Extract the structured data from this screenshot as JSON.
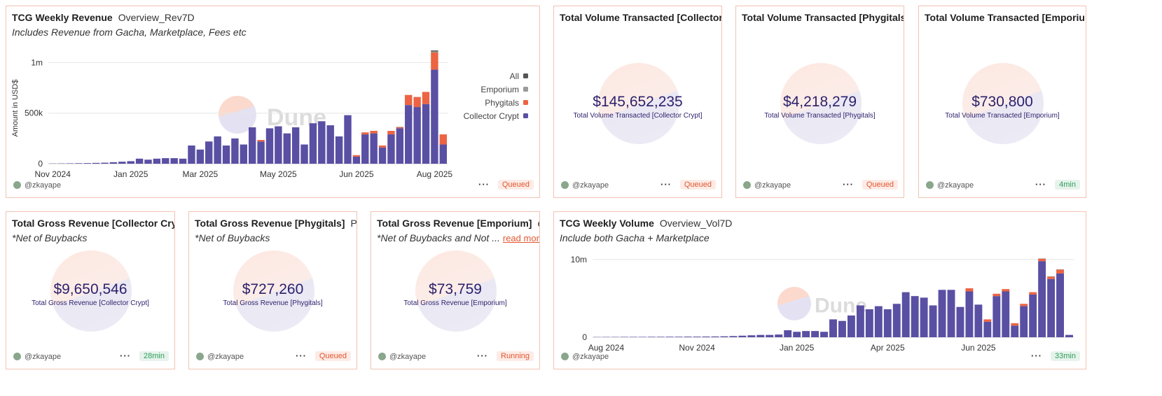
{
  "chart_data": [
    {
      "type": "bar",
      "stacked": true,
      "title": "TCG Weekly Revenue",
      "subtitle": "Overview_Rev7D",
      "description": "Includes Revenue from Gacha, Marketplace, Fees etc",
      "ylabel": "Amount in USD$",
      "watermark": "Dune",
      "author": "@zkayape",
      "status": "Queued",
      "status_color": "#e4572e",
      "legend": "right",
      "grid": true,
      "categories": [
        "Nov 2024",
        null,
        null,
        null,
        null,
        null,
        null,
        null,
        null,
        "Jan 2025",
        null,
        null,
        null,
        null,
        null,
        null,
        null,
        "Mar 2025",
        null,
        null,
        null,
        null,
        null,
        null,
        null,
        null,
        "May 2025",
        null,
        null,
        null,
        null,
        null,
        null,
        null,
        null,
        "Jun 2025",
        null,
        null,
        null,
        null,
        null,
        null,
        null,
        null,
        "Aug 2025",
        null
      ],
      "series": [
        {
          "name": "Collector Crypt",
          "color": "#594fa3",
          "values": [
            2000,
            3000,
            4000,
            5000,
            6000,
            8000,
            10000,
            15000,
            20000,
            25000,
            50000,
            40000,
            50000,
            55000,
            55000,
            50000,
            180000,
            140000,
            220000,
            270000,
            180000,
            250000,
            190000,
            360000,
            220000,
            350000,
            370000,
            300000,
            360000,
            190000,
            400000,
            420000,
            380000,
            270000,
            480000,
            70000,
            290000,
            300000,
            160000,
            290000,
            350000,
            580000,
            560000,
            590000,
            930000,
            190000
          ]
        },
        {
          "name": "Phygitals",
          "color": "#ec6443",
          "values": [
            0,
            0,
            0,
            0,
            0,
            0,
            0,
            0,
            0,
            0,
            0,
            0,
            0,
            0,
            0,
            0,
            0,
            0,
            0,
            0,
            0,
            0,
            0,
            0,
            15000,
            0,
            0,
            0,
            0,
            0,
            0,
            0,
            0,
            0,
            0,
            15000,
            20000,
            25000,
            20000,
            35000,
            10000,
            100000,
            100000,
            120000,
            170000,
            100000
          ]
        },
        {
          "name": "Emporium",
          "color": "#9a9a9a",
          "values": [
            0,
            0,
            0,
            0,
            0,
            0,
            0,
            0,
            0,
            0,
            0,
            0,
            0,
            0,
            0,
            0,
            0,
            0,
            0,
            0,
            0,
            0,
            0,
            0,
            0,
            0,
            0,
            0,
            0,
            0,
            0,
            0,
            0,
            0,
            0,
            0,
            0,
            0,
            0,
            0,
            5000,
            0,
            0,
            0,
            10000,
            0
          ]
        },
        {
          "name": "All",
          "color": "#555555",
          "values": [
            0,
            0,
            0,
            0,
            0,
            0,
            0,
            0,
            0,
            0,
            0,
            0,
            0,
            0,
            0,
            0,
            0,
            0,
            0,
            0,
            0,
            0,
            0,
            0,
            0,
            0,
            0,
            0,
            0,
            0,
            0,
            0,
            0,
            0,
            0,
            0,
            0,
            0,
            0,
            0,
            0,
            0,
            0,
            0,
            10000,
            0
          ]
        }
      ],
      "ylim": [
        0,
        1100000
      ],
      "yticks": [
        0,
        {
          "value": 500000,
          "label": "500k"
        },
        {
          "value": 1000000,
          "label": "1m"
        }
      ]
    },
    {
      "type": "bar",
      "stacked": true,
      "title": "TCG Weekly Volume",
      "subtitle": "Overview_Vol7D",
      "description": "Include both Gacha + Marketplace",
      "watermark": "Dune",
      "author": "@zkayape",
      "status": "33min",
      "status_color": "#2e9d5b",
      "legend": false,
      "grid": true,
      "categories": [
        null,
        "Aug 2024",
        null,
        null,
        null,
        null,
        null,
        null,
        null,
        null,
        null,
        "Nov 2024",
        null,
        null,
        null,
        null,
        null,
        null,
        null,
        null,
        null,
        null,
        "Jan 2025",
        null,
        null,
        null,
        null,
        null,
        null,
        null,
        null,
        null,
        "Apr 2025",
        null,
        null,
        null,
        null,
        null,
        null,
        null,
        null,
        null,
        "Jun 2025",
        null,
        null,
        null,
        null,
        null,
        null,
        null,
        null,
        null,
        null
      ],
      "series": [
        {
          "color": "#594fa3",
          "values": [
            30000,
            40000,
            40000,
            50000,
            50000,
            50000,
            60000,
            60000,
            70000,
            70000,
            80000,
            80000,
            90000,
            100000,
            120000,
            150000,
            200000,
            250000,
            300000,
            300000,
            350000,
            900000,
            700000,
            800000,
            800000,
            700000,
            2300000,
            2100000,
            2800000,
            4100000,
            3600000,
            4000000,
            3600000,
            4300000,
            5800000,
            5300000,
            5100000,
            4100000,
            6100000,
            6100000,
            3900000,
            5900000,
            4200000,
            2000000,
            5300000,
            5900000,
            1500000,
            4000000,
            5500000,
            9800000,
            7500000,
            8200000,
            300000
          ]
        },
        {
          "color": "#ec6443",
          "values": [
            0,
            0,
            0,
            0,
            0,
            0,
            0,
            0,
            0,
            0,
            0,
            0,
            0,
            0,
            0,
            0,
            0,
            0,
            0,
            0,
            0,
            0,
            0,
            0,
            0,
            0,
            0,
            0,
            0,
            0,
            0,
            0,
            0,
            0,
            0,
            0,
            0,
            0,
            0,
            0,
            0,
            400000,
            0,
            300000,
            300000,
            300000,
            300000,
            300000,
            300000,
            300000,
            300000,
            500000,
            0
          ]
        },
        {
          "color": "#9a9a9a",
          "values": [
            0,
            0,
            0,
            0,
            0,
            0,
            0,
            0,
            0,
            0,
            0,
            0,
            0,
            0,
            0,
            0,
            0,
            0,
            0,
            0,
            0,
            0,
            0,
            0,
            0,
            0,
            0,
            0,
            0,
            0,
            0,
            0,
            0,
            0,
            0,
            0,
            0,
            0,
            0,
            0,
            0,
            0,
            0,
            0,
            0,
            0,
            0,
            0,
            0,
            50000,
            50000,
            50000,
            0
          ]
        }
      ],
      "ylim": [
        0,
        10900000
      ],
      "yticks": [
        0,
        {
          "value": 10000000,
          "label": "10m"
        }
      ]
    }
  ],
  "counters": [
    {
      "title": "Total Volume Transacted [Collector ...",
      "value": "$145,652,235",
      "label": "Total Volume Transacted [Collector Crypt]",
      "author": "@zkayape",
      "status": "Queued",
      "status_color": "#e4572e"
    },
    {
      "title": "Total Volume Transacted [Phygitals...",
      "value": "$4,218,279",
      "label": "Total Volume Transacted [Phygitals]",
      "author": "@zkayape",
      "status": "Queued",
      "status_color": "#e4572e"
    },
    {
      "title": "Total Volume Transacted [Emporium...",
      "value": "$730,800",
      "label": "Total Volume Transacted [Emporium]",
      "author": "@zkayape",
      "status": "4min",
      "status_color": "#2e9d5b"
    },
    {
      "title": "Total Gross Revenue [Collector Cry...",
      "description": "*Net of Buybacks",
      "value": "$9,650,546",
      "label": "Total Gross Revenue [Collector Crypt]",
      "author": "@zkayape",
      "status": "28min",
      "status_color": "#2e9d5b"
    },
    {
      "title": "Total Gross Revenue [Phygitals]",
      "tab": "Ph...",
      "description": "*Net of Buybacks",
      "value": "$727,260",
      "label": "Total Gross Revenue [Phygitals]",
      "author": "@zkayape",
      "status": "Queued",
      "status_color": "#e4572e"
    },
    {
      "title": "Total Gross Revenue [Emporium]",
      "tab": "e...",
      "description": "*Net of Buybacks and Not ...",
      "link": "read more",
      "value": "$73,759",
      "label": "Total Gross Revenue [Emporium]",
      "author": "@zkayape",
      "status": "Running",
      "status_color": "#e4572e"
    }
  ]
}
